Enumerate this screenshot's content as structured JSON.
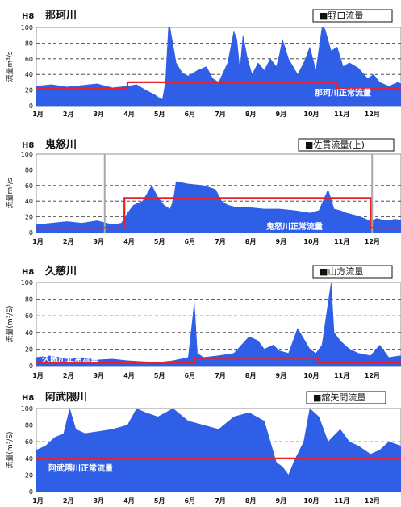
{
  "colors": {
    "flow": "#2f5fe6",
    "normal_line": "#e8202a",
    "grid": "#333333",
    "marker": "#a8a8a8"
  },
  "chart_data": [
    {
      "type": "area",
      "year": "H8",
      "title": "那珂川",
      "legend": "■野口流量",
      "ylabel": "流量m³/s",
      "normal_label": "那珂川正常流量",
      "categories": [
        "1月",
        "2月",
        "3月",
        "4月",
        "5月",
        "6月",
        "7月",
        "8月",
        "9月",
        "10月",
        "11月",
        "12月"
      ],
      "ylim": [
        0,
        100
      ],
      "yticks": [
        0,
        20,
        40,
        60,
        80,
        100
      ],
      "grid": true,
      "legend_position": "top-right",
      "flow": {
        "x": [
          0.0,
          0.5,
          1.0,
          1.5,
          2.0,
          2.5,
          3.0,
          3.3,
          3.6,
          3.9,
          4.05,
          4.15,
          4.25,
          4.35,
          4.4,
          4.6,
          4.8,
          5.0,
          5.3,
          5.6,
          5.8,
          6.0,
          6.3,
          6.5,
          6.6,
          6.7,
          6.8,
          6.95,
          7.1,
          7.3,
          7.5,
          7.7,
          7.9,
          8.0,
          8.1,
          8.3,
          8.6,
          8.8,
          9.0,
          9.2,
          9.4,
          9.5,
          9.7,
          9.9,
          10.1,
          10.3,
          10.6,
          10.9,
          11.1,
          11.3,
          11.6,
          11.9,
          12.0
        ],
        "values": [
          25,
          27,
          24,
          26,
          28,
          23,
          25,
          27,
          20,
          14,
          10,
          8,
          30,
          100,
          100,
          55,
          42,
          38,
          45,
          50,
          35,
          30,
          55,
          95,
          85,
          45,
          90,
          60,
          40,
          55,
          45,
          60,
          50,
          65,
          85,
          60,
          40,
          55,
          75,
          45,
          100,
          98,
          70,
          75,
          50,
          55,
          48,
          35,
          40,
          30,
          25,
          30,
          28
        ]
      },
      "normal_flow": {
        "x": [
          0,
          3.0,
          3.0,
          9.9,
          9.9,
          12
        ],
        "values": [
          22,
          22,
          30,
          30,
          22,
          22
        ]
      },
      "markers": []
    },
    {
      "type": "area",
      "year": "H8",
      "title": "鬼怒川",
      "legend": "■佐貫流量(上)",
      "ylabel": "流量m³/s",
      "normal_label": "鬼怒川正常流量",
      "categories": [
        "1月",
        "2月",
        "3月",
        "4月",
        "5月",
        "6月",
        "7月",
        "8月",
        "9月",
        "10月",
        "11月",
        "12月"
      ],
      "ylim": [
        0,
        100
      ],
      "yticks": [
        0,
        20,
        40,
        60,
        80,
        100
      ],
      "grid": true,
      "legend_position": "top-right",
      "flow": {
        "x": [
          0.0,
          0.5,
          1.0,
          1.5,
          2.0,
          2.5,
          2.8,
          3.0,
          3.2,
          3.5,
          3.8,
          4.0,
          4.2,
          4.4,
          4.5,
          4.6,
          5.0,
          5.5,
          5.9,
          6.1,
          6.3,
          6.6,
          7.0,
          7.5,
          8.0,
          8.5,
          9.0,
          9.3,
          9.6,
          9.8,
          10.0,
          10.2,
          10.5,
          10.8,
          11.0,
          11.2,
          11.5,
          11.8,
          12.0
        ],
        "values": [
          10,
          12,
          14,
          12,
          15,
          10,
          12,
          25,
          35,
          40,
          60,
          45,
          35,
          30,
          40,
          65,
          62,
          60,
          55,
          40,
          35,
          32,
          32,
          30,
          30,
          28,
          25,
          28,
          55,
          30,
          28,
          25,
          22,
          18,
          14,
          18,
          15,
          17,
          16
        ]
      },
      "normal_flow": {
        "x": [
          0,
          2.9,
          2.9,
          11.0,
          11.0,
          12
        ],
        "values": [
          6,
          6,
          44,
          44,
          6,
          6
        ]
      },
      "markers": [
        2.25,
        11.05
      ]
    },
    {
      "type": "area",
      "year": "H8",
      "title": "久慈川",
      "legend": "■山方流量",
      "ylabel": "流量(m³/S)",
      "normal_label": "久慈川正常流量",
      "categories": [
        "1月",
        "2月",
        "3月",
        "4月",
        "5月",
        "6月",
        "7月",
        "8月",
        "9月",
        "10月",
        "11月",
        "12月"
      ],
      "ylim": [
        0,
        100
      ],
      "yticks": [
        0,
        20,
        40,
        60,
        80,
        100
      ],
      "grid": true,
      "legend_position": "top-right",
      "flow": {
        "x": [
          0.0,
          0.5,
          1.0,
          1.5,
          2.0,
          2.5,
          3.0,
          3.5,
          4.0,
          4.5,
          5.0,
          5.2,
          5.3,
          5.5,
          6.0,
          6.5,
          7.0,
          7.3,
          7.5,
          7.8,
          8.0,
          8.3,
          8.6,
          9.0,
          9.2,
          9.4,
          9.7,
          9.8,
          10.0,
          10.3,
          10.6,
          11.0,
          11.3,
          11.6,
          12.0
        ],
        "values": [
          10,
          12,
          8,
          10,
          7,
          8,
          6,
          5,
          4,
          6,
          10,
          76,
          15,
          10,
          12,
          15,
          35,
          30,
          20,
          25,
          18,
          15,
          45,
          20,
          15,
          25,
          100,
          40,
          30,
          20,
          15,
          12,
          25,
          10,
          12
        ]
      },
      "normal_flow": {
        "x": [
          0,
          5.2,
          5.2,
          9.3,
          9.3,
          12
        ],
        "values": [
          3,
          3,
          9,
          9,
          3,
          3
        ]
      },
      "markers": []
    },
    {
      "type": "area",
      "year": "H8",
      "title": "阿武隈川",
      "legend": "■舘矢間流量",
      "ylabel": "流量(m³/S)",
      "normal_label": "阿武隈川正常流量",
      "categories": [
        "1月",
        "2月",
        "3月",
        "4月",
        "5月",
        "6月",
        "7月",
        "8月",
        "9月",
        "10月",
        "11月",
        "12月"
      ],
      "ylim": [
        0,
        100
      ],
      "yticks": [
        0,
        20,
        40,
        60,
        80,
        100
      ],
      "grid": true,
      "legend_position": "top-right",
      "flow": {
        "x": [
          0.0,
          0.3,
          0.6,
          0.9,
          1.1,
          1.3,
          1.6,
          2.0,
          2.5,
          3.0,
          3.3,
          3.6,
          4.0,
          4.5,
          5.0,
          5.5,
          6.0,
          6.5,
          7.0,
          7.5,
          7.9,
          8.1,
          8.3,
          8.5,
          8.8,
          9.0,
          9.3,
          9.6,
          10.0,
          10.3,
          10.6,
          11.0,
          11.3,
          11.6,
          12.0
        ],
        "values": [
          50,
          55,
          65,
          70,
          100,
          75,
          70,
          72,
          75,
          80,
          100,
          95,
          90,
          100,
          85,
          80,
          75,
          90,
          95,
          85,
          35,
          30,
          20,
          38,
          60,
          100,
          90,
          60,
          75,
          60,
          55,
          45,
          50,
          60,
          55
        ]
      },
      "normal_flow": {
        "x": [
          0,
          12
        ],
        "values": [
          40,
          40
        ]
      },
      "markers": []
    }
  ]
}
